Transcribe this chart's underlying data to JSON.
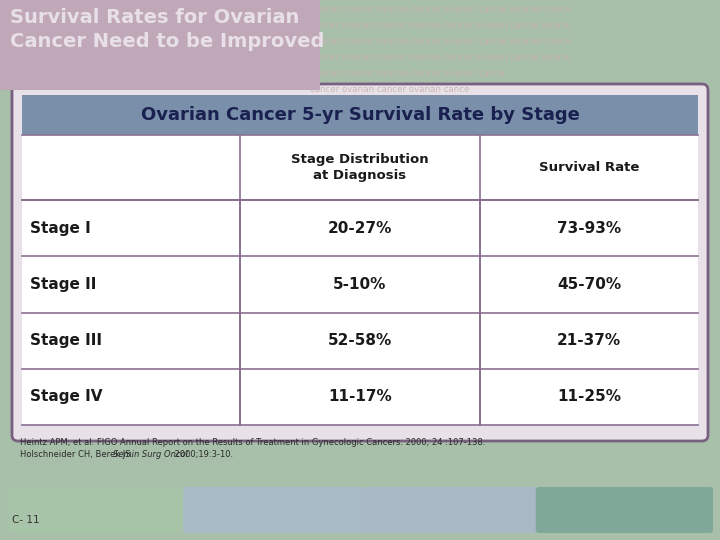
{
  "title_slide": "Survival Rates for Ovarian\nCancer Need to be Improved",
  "table_title": "Ovarian Cancer 5-yr Survival Rate by Stage",
  "col_headers": [
    "",
    "Stage Distribution\nat Diagnosis",
    "Survival Rate"
  ],
  "rows": [
    [
      "Stage I",
      "20-27%",
      "73-93%"
    ],
    [
      "Stage II",
      "5-10%",
      "45-70%"
    ],
    [
      "Stage III",
      "52-58%",
      "21-37%"
    ],
    [
      "Stage IV",
      "11-17%",
      "11-25%"
    ]
  ],
  "fn1": "Heintz APM, et al. FIGO Annual Report on the Results of Treatment in Gynecologic Cancers. 2000; 24 :107-138.",
  "fn2_normal": "Holschneider CH, Berek JS. ",
  "fn2_italic": "Semin Surg Oncol.",
  "fn2_end": " 2000;19:3-10.",
  "slide_label": "C- 11",
  "bg_color": "#a8bfaa",
  "title_box_color": "#c0a8b8",
  "watermark_color": "#c8b0b0",
  "table_outer_bg": "#e8e2e8",
  "table_outer_border": "#7a6080",
  "table_header_bg": "#7a90aa",
  "table_title_text": "#1a2050",
  "col_header_bg": "#ffffff",
  "row_bg": "#ffffff",
  "row_text_color": "#1a1a1a",
  "border_color": "#8a7090",
  "bottom_bar_colors": [
    "#a8c4a8",
    "#a8bcc8",
    "#a8b8c4",
    "#80a898"
  ],
  "title_text_color": "#e8e0e8"
}
